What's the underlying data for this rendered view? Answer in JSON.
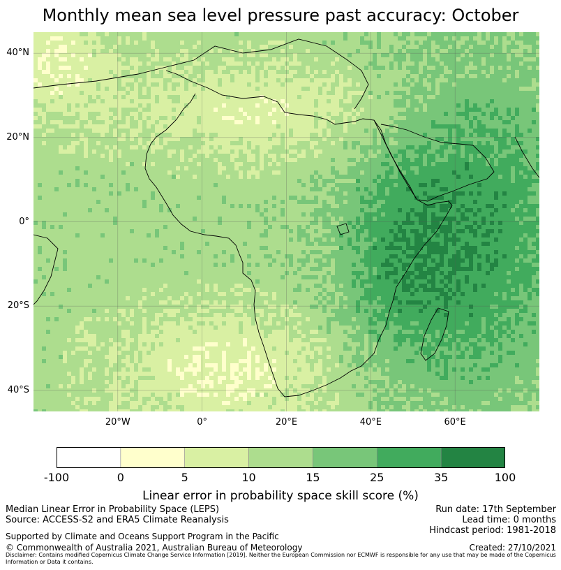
{
  "title": "Monthly mean sea level pressure past accuracy: October",
  "map": {
    "region": "Africa, Arabia and western Indian Ocean",
    "lat_ticks": [
      "40°N",
      "20°N",
      "0°",
      "20°S",
      "40°S"
    ],
    "lon_ticks": [
      "20°W",
      "0°",
      "20°E",
      "40°E",
      "60°E"
    ],
    "lat_values": [
      40,
      20,
      0,
      -20,
      -40
    ],
    "lon_values": [
      -20,
      0,
      20,
      40,
      60
    ],
    "extent": {
      "lon_min": -40,
      "lon_max": 80,
      "lat_min": -45,
      "lat_max": 45
    }
  },
  "colorbar": {
    "bounds": [
      "-100",
      "0",
      "5",
      "10",
      "15",
      "25",
      "35",
      "100"
    ],
    "colors": [
      "#ffffff",
      "#ffffcc",
      "#d9f0a3",
      "#addd8e",
      "#78c679",
      "#41ab5d",
      "#238443"
    ],
    "label": "Linear error in probability space skill score (%)"
  },
  "info": {
    "method": "Median Linear Error in Probability Space (LEPS)",
    "source": "Source: ACCESS-S2 and ERA5 Climate Reanalysis",
    "run_date": "Run date: 17th September",
    "lead_time": "Lead time: 0 months",
    "hindcast": "Hindcast period: 1981-2018",
    "support": "Supported by Climate and Oceans Support Program in the Pacific",
    "copyright": "© Commonwealth of Australia 2021, Australian Bureau of Meteorology",
    "created": "Created: 27/10/2021",
    "disclaimer": "Disclaimer: Contains modified Copernicus Climate Change Service Information [2019]. Neither the European Commission nor ECMWF is responsible for any use that may be made of the Copernicus Information or Data it contains."
  }
}
